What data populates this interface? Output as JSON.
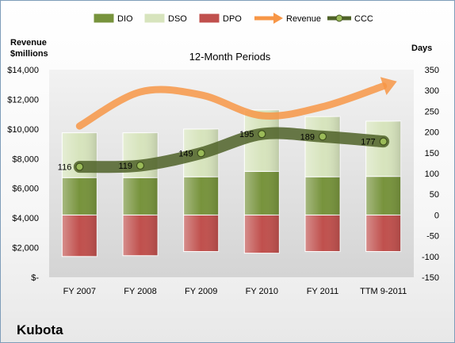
{
  "chart_data": {
    "type": "bar",
    "title": "12-Month Periods",
    "company": "Kubota",
    "categories": [
      "FY 2007",
      "FY 2008",
      "FY 2009",
      "FY 2010",
      "FY 2011",
      "TTM 9-2011"
    ],
    "y_left": {
      "label_line1": "Revenue",
      "label_line2": "$millions",
      "ylim": [
        0,
        14000
      ],
      "ticks": [
        0,
        2000,
        4000,
        6000,
        8000,
        10000,
        12000,
        14000
      ],
      "tick_labels": [
        "$-",
        "$2,000",
        "$4,000",
        "$6,000",
        "$8,000",
        "$10,000",
        "$12,000",
        "$14,000"
      ]
    },
    "y_right": {
      "label": "Days",
      "ylim": [
        -150,
        350
      ],
      "ticks": [
        -150,
        -100,
        -50,
        0,
        50,
        100,
        150,
        200,
        250,
        300,
        350
      ],
      "tick_labels": [
        "-150",
        "-100",
        "-50",
        "0",
        "50",
        "100",
        "150",
        "200",
        "250",
        "300",
        "350"
      ]
    },
    "series": [
      {
        "name": "DIO",
        "axis": "right",
        "kind": "stacked-bar",
        "color": "#77933c",
        "values": [
          90,
          90,
          92,
          105,
          92,
          93
        ]
      },
      {
        "name": "DSO",
        "axis": "right",
        "kind": "stacked-bar",
        "color": "#d7e4bd",
        "values": [
          108,
          108,
          115,
          148,
          145,
          133
        ]
      },
      {
        "name": "DPO",
        "axis": "right",
        "kind": "negative-bar",
        "color": "#c0504d",
        "values": [
          -100,
          -98,
          -88,
          -92,
          -88,
          -88
        ]
      },
      {
        "name": "Revenue",
        "axis": "left",
        "kind": "arrow-line",
        "color": "#f79646",
        "values": [
          10200,
          12500,
          12300,
          10900,
          11500,
          12900
        ]
      },
      {
        "name": "CCC",
        "axis": "right",
        "kind": "line-markers",
        "color": "#4f6228",
        "values": [
          116,
          119,
          149,
          195,
          189,
          177
        ],
        "labels": [
          "116",
          "119",
          "149",
          "195",
          "189",
          "177"
        ]
      }
    ],
    "legend_position": "top",
    "grid": false
  }
}
